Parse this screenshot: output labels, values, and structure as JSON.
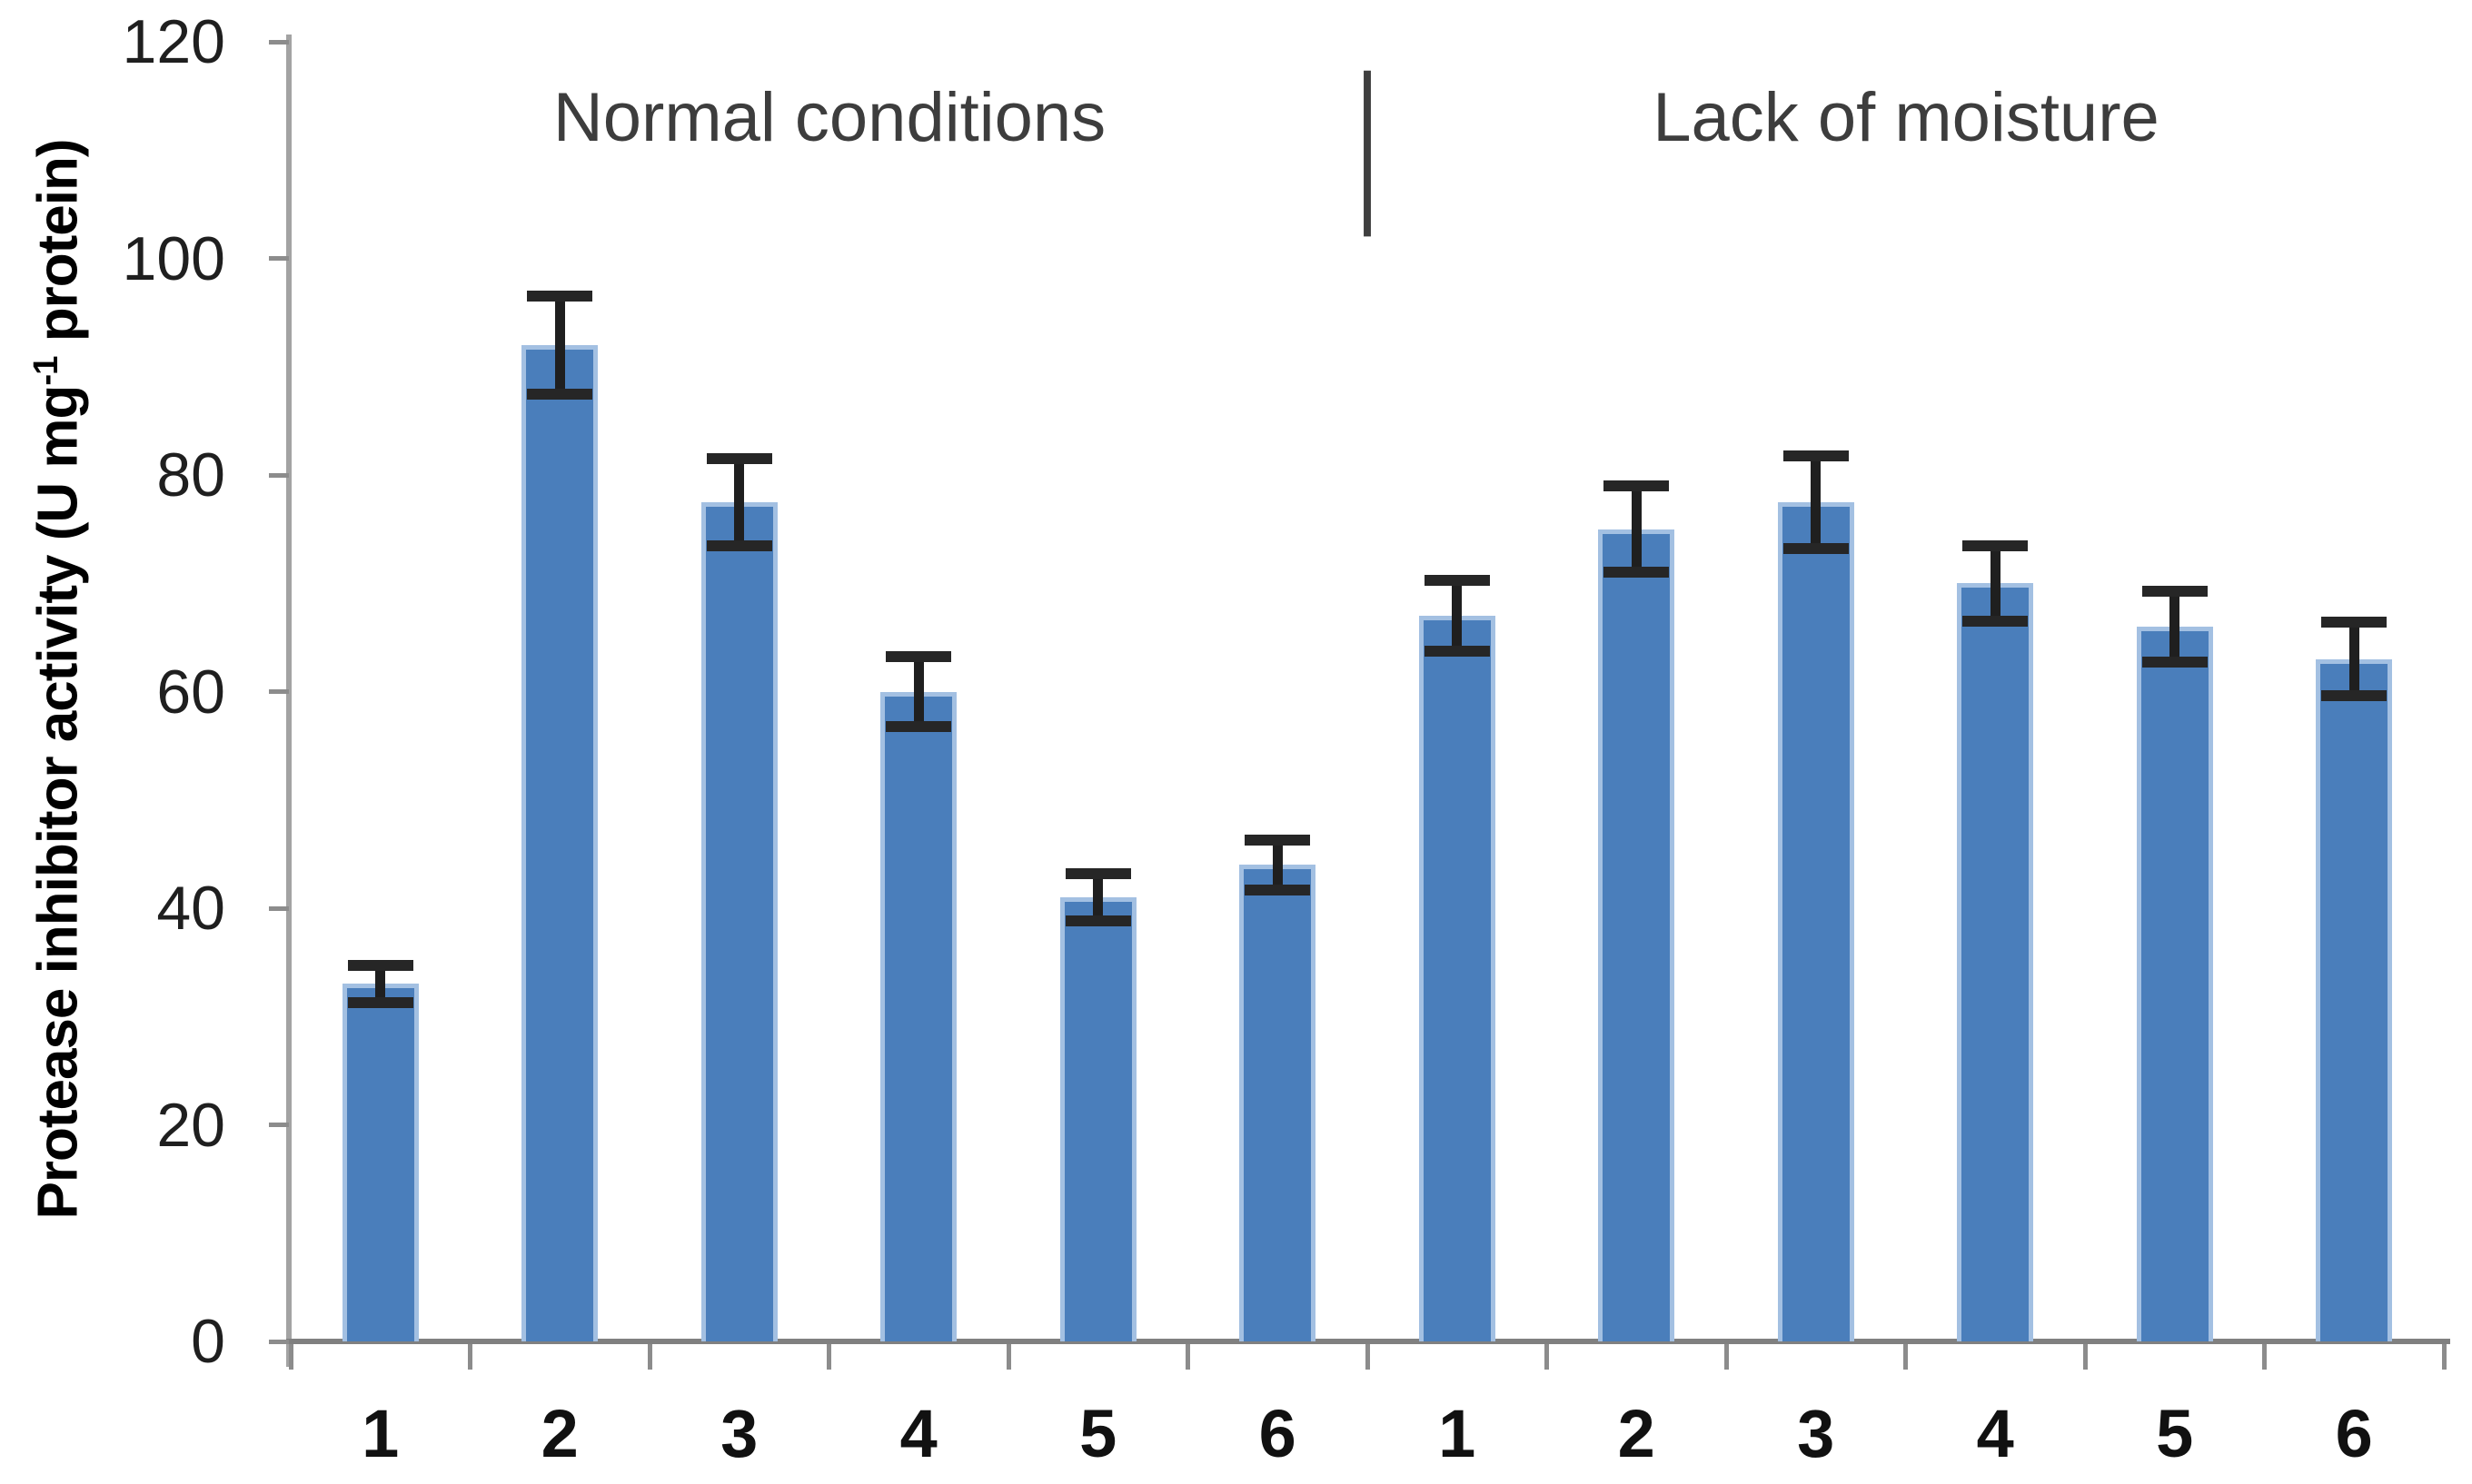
{
  "chart_data": {
    "type": "bar",
    "title_left": "Normal conditions",
    "title_right": "Lack of moisture",
    "separator": "|",
    "ylabel": "Protease inhibitor activity (U mg⁻¹ protein)",
    "ylabel_parts": {
      "pre": "Protease inhibitor activity (U mg",
      "sup": "-1",
      "post": " protein)"
    },
    "xlabel": "",
    "ylim": [
      0,
      120
    ],
    "ytick_interval": 20,
    "yticks": [
      0,
      20,
      40,
      60,
      80,
      100,
      120
    ],
    "grid": false,
    "legend": false,
    "bar_color": "#4a7ebb",
    "bar_edge_color": "#a3c0e2",
    "error_color": "#1f1f1f",
    "axis_color": "#808080",
    "groups": [
      {
        "name": "Normal conditions",
        "categories": [
          "1",
          "2",
          "3",
          "4",
          "5",
          "6"
        ],
        "values": [
          33,
          92,
          77.5,
          60,
          41,
          44
        ],
        "errors": [
          1.7,
          4.5,
          4.0,
          3.2,
          2.2,
          2.3
        ]
      },
      {
        "name": "Lack of moisture",
        "categories": [
          "1",
          "2",
          "3",
          "4",
          "5",
          "6"
        ],
        "values": [
          67,
          75,
          77.5,
          70,
          66,
          63
        ],
        "errors": [
          3.3,
          4.0,
          4.3,
          3.5,
          3.3,
          3.4
        ]
      }
    ]
  }
}
